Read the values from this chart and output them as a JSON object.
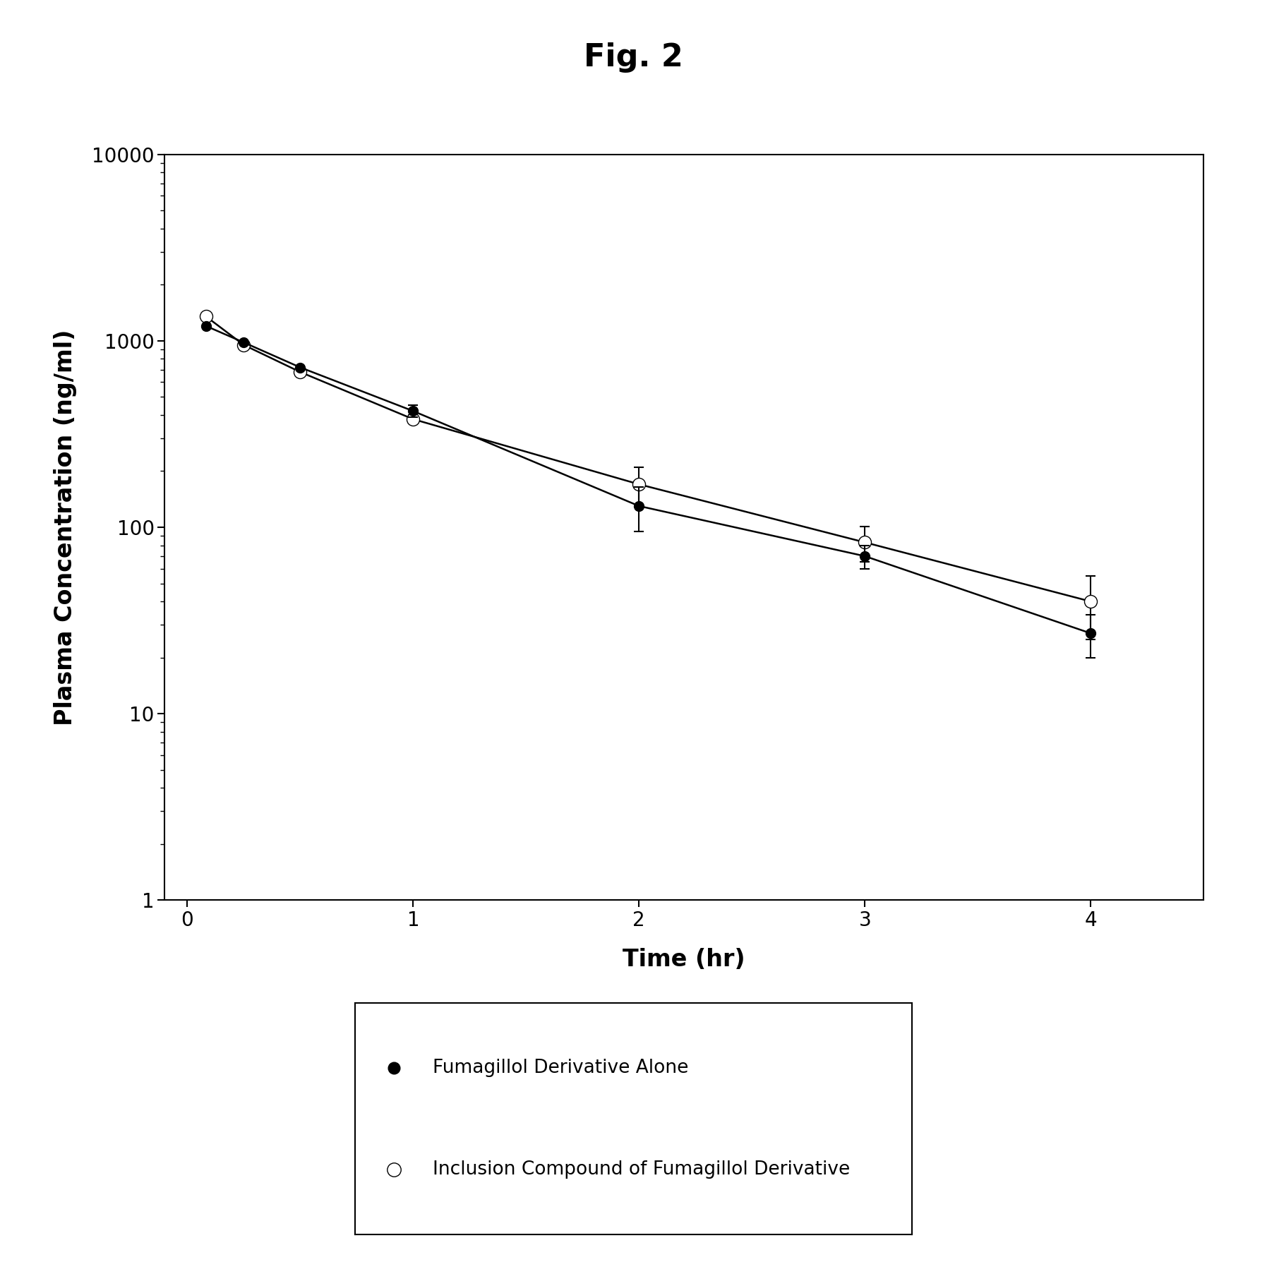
{
  "title": "Fig. 2",
  "xlabel": "Time (hr)",
  "ylabel": "Plasma Concentration (ng/ml)",
  "xlim": [
    -0.1,
    4.5
  ],
  "ylim_log": [
    1,
    10000
  ],
  "xticks": [
    0,
    1,
    2,
    3,
    4
  ],
  "series1_label": "Fumagillol Derivative Alone",
  "series2_label": "Inclusion Compound of Fumagillol Derivative",
  "series1_x": [
    0.083,
    0.25,
    0.5,
    1.0,
    2.0,
    3.0,
    4.0
  ],
  "series1_y": [
    1200,
    980,
    720,
    420,
    130,
    70,
    27
  ],
  "series1_yerr": [
    0,
    0,
    0,
    30,
    35,
    10,
    7
  ],
  "series2_x": [
    0.083,
    0.25,
    0.5,
    1.0,
    2.0,
    3.0,
    4.0
  ],
  "series2_y": [
    1350,
    950,
    680,
    380,
    170,
    83,
    40
  ],
  "series2_yerr": [
    0,
    0,
    0,
    20,
    40,
    18,
    15
  ],
  "line_color": "#000000",
  "marker_size": 10,
  "linewidth": 1.8,
  "title_fontsize": 32,
  "axis_label_fontsize": 24,
  "tick_fontsize": 20,
  "legend_fontsize": 19,
  "background_color": "#ffffff"
}
